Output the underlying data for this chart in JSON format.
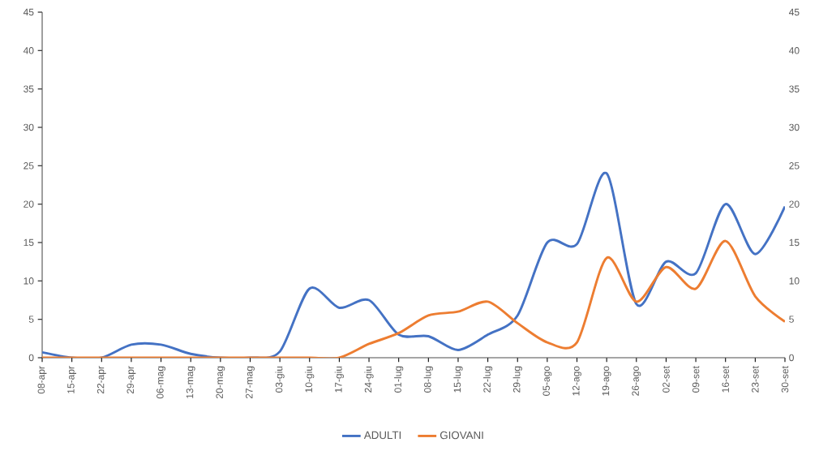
{
  "chart_data": {
    "type": "line",
    "categories": [
      "08-apr",
      "15-apr",
      "22-apr",
      "29-apr",
      "06-mag",
      "13-mag",
      "20-mag",
      "27-mag",
      "03-giu",
      "10-giu",
      "17-giu",
      "24-giu",
      "01-lug",
      "08-lug",
      "15-lug",
      "22-lug",
      "29-lug",
      "05-ago",
      "12-ago",
      "19-ago",
      "26-ago",
      "02-set",
      "09-set",
      "16-set",
      "23-set",
      "30-set"
    ],
    "series": [
      {
        "name": "ADULTI",
        "color": "#4472c4",
        "values": [
          0.7,
          0,
          0,
          1.7,
          1.7,
          0.5,
          0,
          0,
          0.8,
          9,
          6.5,
          7.5,
          3,
          2.8,
          1,
          3,
          5.5,
          15,
          14.8,
          24,
          7,
          12.5,
          11,
          20,
          13.5,
          19.7
        ]
      },
      {
        "name": "GIOVANI",
        "color": "#ed7d31",
        "values": [
          0,
          0,
          0,
          0,
          0,
          0,
          0,
          0,
          0,
          0,
          0,
          1.8,
          3.2,
          5.5,
          6,
          7.3,
          4.5,
          2,
          2,
          13,
          7.3,
          11.8,
          9,
          15.2,
          8,
          4.7
        ]
      }
    ],
    "ylim": [
      0,
      45
    ],
    "yticks": [
      0,
      5,
      10,
      15,
      20,
      25,
      30,
      35,
      40,
      45
    ],
    "y2lim": [
      0,
      45
    ],
    "y2ticks": [
      0,
      5,
      10,
      15,
      20,
      25,
      30,
      35,
      40,
      45
    ],
    "legend": "bottom",
    "marker": "none",
    "line_style": "solid"
  }
}
